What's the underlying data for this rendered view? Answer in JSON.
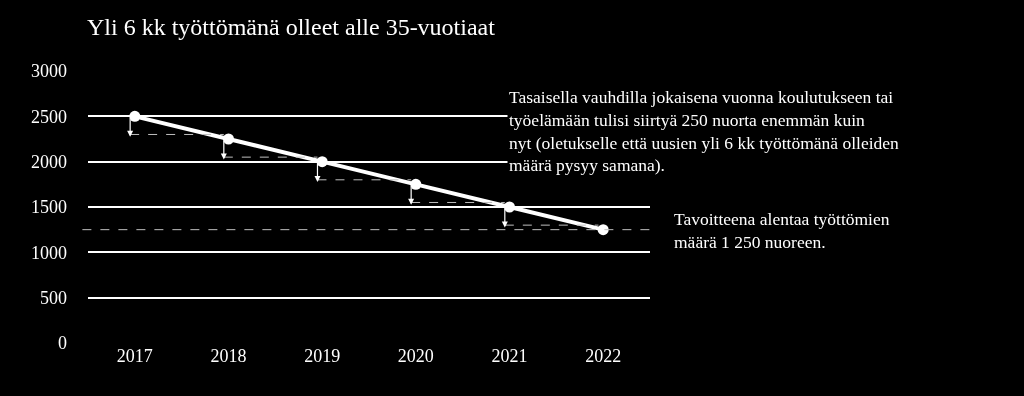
{
  "chart_data": {
    "type": "line",
    "title": "Yli 6 kk työttömänä olleet alle 35-vuotiaat",
    "categories": [
      "2017",
      "2018",
      "2019",
      "2020",
      "2021",
      "2022"
    ],
    "series": [
      {
        "color": "#ffffff",
        "values": [
          2500,
          2250,
          2000,
          1750,
          1500,
          1250
        ]
      }
    ],
    "ylim": [
      0,
      3000
    ],
    "yticks": [
      0,
      500,
      1000,
      1500,
      2000,
      2500,
      3000
    ],
    "grid": "y",
    "legend": false,
    "marker": "circle",
    "line_style": "solid",
    "ref_lines": [
      {
        "axis": "y",
        "value": 1250,
        "color": "#bfbfbf",
        "line_style": "dashed"
      }
    ],
    "annotations": [
      "Tasaisella vauhdilla jokaisena vuonna koulutukseen tai\ntyöelämään tulisi siirtyä 250 nuorta enemmän kuin\nnyt (oletukselle että uusien yli 6 kk työttömänä olleiden\nmäärä pysyy samana).",
      "Tavoitteena alentaa työttömien\nmäärä 1 250 nuoreen."
    ]
  }
}
